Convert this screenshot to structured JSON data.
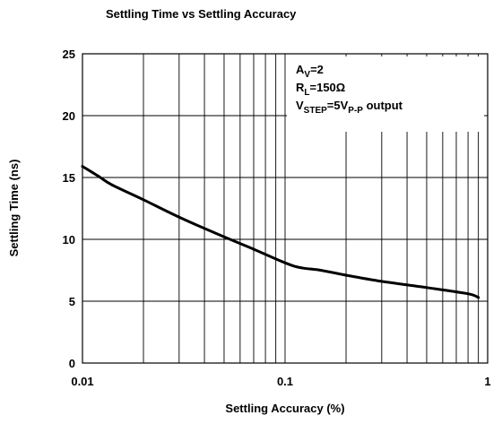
{
  "chart_data": {
    "type": "line",
    "title": "Settling Time vs Settling Accuracy",
    "xlabel": "Settling Accuracy (%)",
    "ylabel": "Settling Time (ns)",
    "xscale": "log",
    "xlim": [
      0.01,
      1
    ],
    "ylim": [
      0,
      25
    ],
    "xticks": [
      "0.01",
      "0.1",
      "1"
    ],
    "yticks": [
      "0",
      "5",
      "10",
      "15",
      "20",
      "25"
    ],
    "grid": true,
    "line_color": "#000000",
    "annotation": {
      "line1": {
        "main": "A",
        "sub": "V",
        "rest": "=2"
      },
      "line2": {
        "main": "R",
        "sub": "L",
        "rest": "=150Ω"
      },
      "line3": {
        "main": "V",
        "sub": "STEP",
        "mid": "=5V",
        "sub2": "P-P",
        "rest": " output"
      }
    },
    "series": [
      {
        "x": [
          0.01,
          0.012,
          0.014,
          0.02,
          0.03,
          0.05,
          0.07,
          0.1,
          0.12,
          0.15,
          0.2,
          0.3,
          0.5,
          0.8,
          0.9
        ],
        "y": [
          15.9,
          15.1,
          14.4,
          13.2,
          11.8,
          10.2,
          9.2,
          8.1,
          7.7,
          7.5,
          7.1,
          6.6,
          6.1,
          5.6,
          5.3
        ]
      }
    ]
  }
}
